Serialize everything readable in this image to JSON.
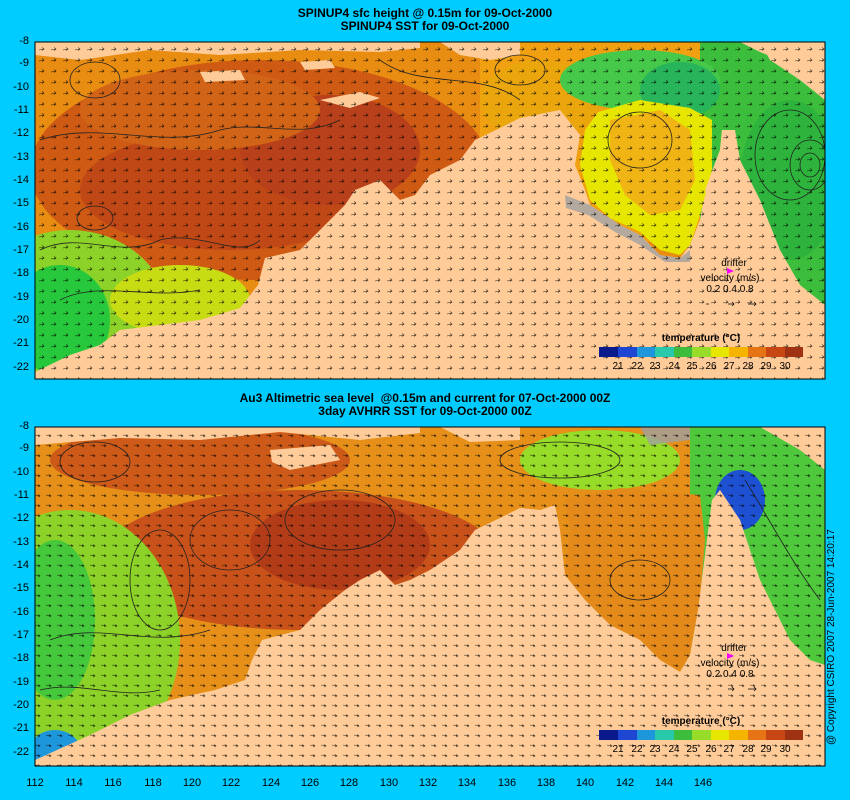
{
  "panel_top": {
    "title_line1": "SPINUP4 sfc height @ 0.15m for 09-Oct-2000",
    "title_line2": "SPINUP4 SST for 09-Oct-2000"
  },
  "panel_bottom": {
    "title_line1": "Au3 Altimetric sea level  @0.15m and current for 07-Oct-2000 00Z",
    "title_line2": "3day AVHRR SST for 09-Oct-2000 00Z"
  },
  "latitude_ticks": [
    "-8",
    "-9",
    "-10",
    "-11",
    "-12",
    "-13",
    "-14",
    "-15",
    "-16",
    "-17",
    "-18",
    "-19",
    "-20",
    "-21",
    "-22"
  ],
  "longitude_ticks": [
    "112",
    "114",
    "116",
    "118",
    "120",
    "122",
    "124",
    "126",
    "128",
    "130",
    "132",
    "134",
    "136",
    "138",
    "140",
    "142",
    "144",
    "146"
  ],
  "drifter_legend": {
    "label": "drifter",
    "velocity_label": "velocity (m/s)",
    "scale": "0.2 0.4 0.8",
    "marker_color": "#ff00ff"
  },
  "colorbar": {
    "title": "temperature (°C)",
    "ticks": [
      "21",
      "22",
      "23",
      "24",
      "25",
      "26",
      "27",
      "28",
      "29",
      "30"
    ],
    "colors": [
      "#0a1a8c",
      "#1e46d2",
      "#1e96dc",
      "#28c8aa",
      "#3cbe3c",
      "#96dc28",
      "#e6e600",
      "#f5b400",
      "#e67314",
      "#c84614",
      "#a03214"
    ]
  },
  "copyright": "@ Copyright CSIRO 2007   28-Jun-2007 14:20:17",
  "colors": {
    "background": "#00ccff",
    "land": "#ffcc99",
    "coast_shelf": "#a0a0a0"
  }
}
